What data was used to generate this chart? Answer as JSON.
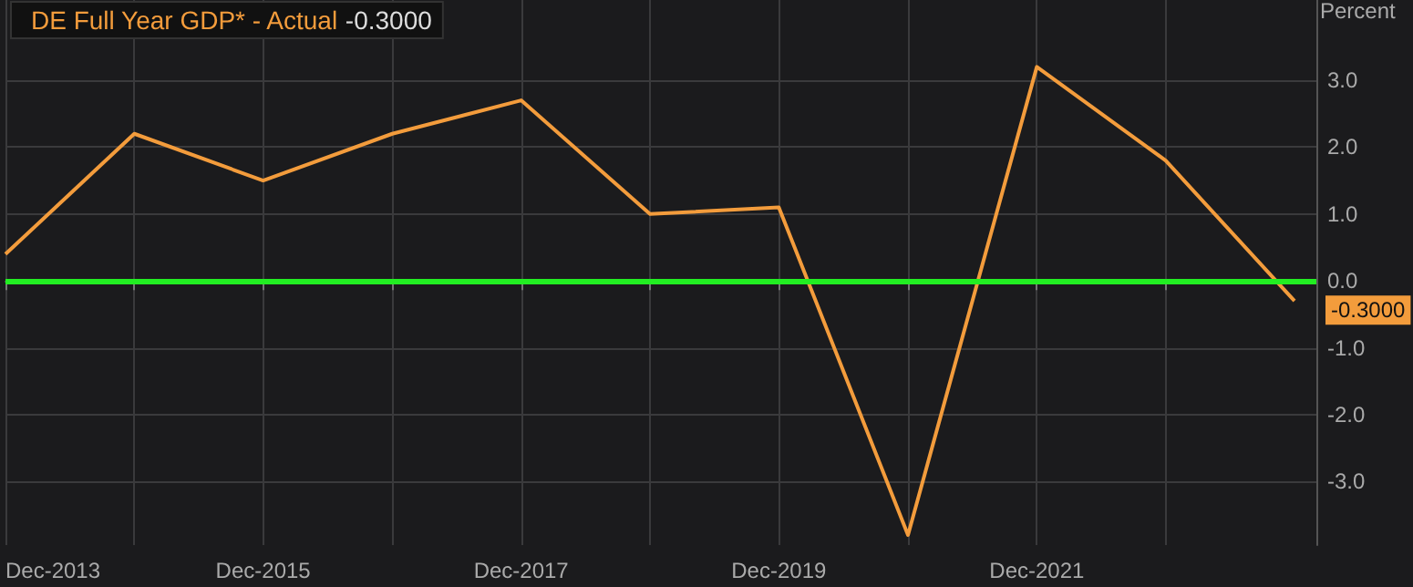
{
  "chart_data": {
    "type": "line",
    "ylabel": "Percent",
    "x": [
      "2013-12",
      "2014-12",
      "2015-12",
      "2016-12",
      "2017-12",
      "2018-12",
      "2019-12",
      "2020-12",
      "2021-12",
      "2022-12",
      "2023-12"
    ],
    "series": [
      {
        "name": "DE Full Year GDP* - Actual",
        "color": "#f39c3c",
        "values": [
          0.4,
          2.2,
          1.5,
          2.2,
          2.7,
          1.0,
          1.1,
          -3.8,
          3.2,
          1.8,
          -0.3
        ],
        "value_labels": [
          null,
          null,
          null,
          null,
          null,
          null,
          null,
          null,
          null,
          null,
          "-0.3000"
        ]
      }
    ],
    "xlim": [
      "2013-12",
      "2024-02"
    ],
    "xticks": [
      {
        "value": "2013-12",
        "label": "Dec-2013"
      },
      {
        "value": "2014-12",
        "label": null
      },
      {
        "value": "2015-12",
        "label": "Dec-2015"
      },
      {
        "value": "2016-12",
        "label": null
      },
      {
        "value": "2017-12",
        "label": "Dec-2017"
      },
      {
        "value": "2018-12",
        "label": null
      },
      {
        "value": "2019-12",
        "label": "Dec-2019"
      },
      {
        "value": "2020-12",
        "label": null
      },
      {
        "value": "2021-12",
        "label": "Dec-2021"
      },
      {
        "value": "2022-12",
        "label": null
      }
    ],
    "ylim": [
      -3.95,
      4.2
    ],
    "yticks": [
      {
        "value": -3,
        "label": "-3.0"
      },
      {
        "value": -2,
        "label": "-2.0"
      },
      {
        "value": -1,
        "label": "-1.0"
      },
      {
        "value": 0,
        "label": "0.0"
      },
      {
        "value": 1,
        "label": "1.0"
      },
      {
        "value": 2,
        "label": "2.0"
      },
      {
        "value": 3,
        "label": "3.0"
      }
    ],
    "ref_lines": [
      {
        "axis": "y",
        "value": 0,
        "color": "#22ee22"
      }
    ],
    "annotations": [
      "-0.3000"
    ],
    "grid": true,
    "legend": "top left",
    "marker": "none",
    "line_style": "solid"
  }
}
